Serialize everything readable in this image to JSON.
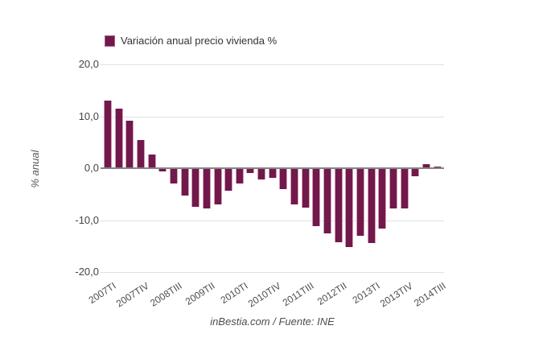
{
  "legend": {
    "label": "Variación anual precio vivienda %",
    "swatch_color": "#71194a"
  },
  "y_axis": {
    "title": "% anual",
    "tick_labels": [
      "20,0",
      "10,0",
      "0,0",
      "-10,0",
      "-20,0"
    ],
    "tick_values": [
      20,
      10,
      0,
      -10,
      -20
    ]
  },
  "x_axis": {
    "shown_tick_labels": [
      "2007TI",
      "2007TIV",
      "2008TIII",
      "2009TII",
      "2010TI",
      "2010TIV",
      "2011TIII",
      "2012TII",
      "2013TI",
      "2013TIV",
      "2014TIII"
    ],
    "label_every": 3
  },
  "footer": {
    "credit": "inBestia.com / Fuente: INE"
  },
  "colors": {
    "bar": "#71194a",
    "bar_edge": "#dea8c4",
    "gridline": "#e0e0e0",
    "zero_line": "#848484",
    "axis_text": "#444444",
    "muted_text": "#4d4d4d"
  },
  "chart_data": {
    "type": "bar",
    "title": "Variación anual precio vivienda %",
    "ylabel": "% anual",
    "xlabel": "",
    "ylim": [
      -20,
      20
    ],
    "y_ticks": [
      20,
      10,
      0,
      -10,
      -20
    ],
    "grid": true,
    "legend_position": "top",
    "decimal_separator": ",",
    "source_note": "inBestia.com / Fuente: INE",
    "categories": [
      "2007TI",
      "2007TII",
      "2007TIII",
      "2007TIV",
      "2008TI",
      "2008TII",
      "2008TIII",
      "2008TIV",
      "2009TI",
      "2009TII",
      "2009TIII",
      "2009TIV",
      "2010TI",
      "2010TII",
      "2010TIII",
      "2010TIV",
      "2011TI",
      "2011TII",
      "2011TIII",
      "2011TIV",
      "2012TI",
      "2012TII",
      "2012TIII",
      "2012TIV",
      "2013TI",
      "2013TII",
      "2013TIII",
      "2013TIV",
      "2014TI",
      "2014TII",
      "2014TIII"
    ],
    "values": [
      13.0,
      11.5,
      9.1,
      5.5,
      2.6,
      -0.6,
      -3.0,
      -5.3,
      -7.5,
      -7.8,
      -7.0,
      -4.4,
      -2.9,
      -0.9,
      -2.1,
      -1.8,
      -4.0,
      -7.0,
      -7.6,
      -11.2,
      -12.5,
      -14.3,
      -15.2,
      -13.0,
      -14.4,
      -11.6,
      -7.8,
      -7.7,
      -1.6,
      0.8,
      0.3
    ]
  }
}
